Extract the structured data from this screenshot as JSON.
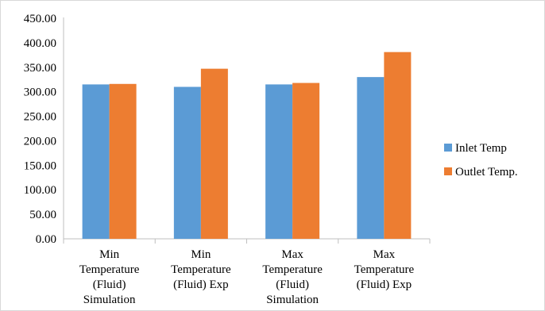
{
  "chart_data": {
    "type": "bar",
    "categories": [
      [
        "Min",
        "Temperature",
        "(Fluid)",
        "Simulation"
      ],
      [
        "Min",
        "Temperature",
        "(Fluid) Exp"
      ],
      [
        "Max",
        "Temperature",
        "(Fluid)",
        "Simulation"
      ],
      [
        "Max",
        "Temperature",
        "(Fluid) Exp"
      ]
    ],
    "series": [
      {
        "name": "Inlet Temp",
        "color": "#5b9bd5",
        "values": [
          315,
          310,
          315,
          330
        ]
      },
      {
        "name": "Outlet Temp.",
        "color": "#ed7d31",
        "values": [
          316,
          347,
          318,
          381
        ]
      }
    ],
    "ylim": [
      0,
      450
    ],
    "yticks": [
      "0.00",
      "50.00",
      "100.00",
      "150.00",
      "200.00",
      "250.00",
      "300.00",
      "350.00",
      "400.00",
      "450.00"
    ],
    "grid": false,
    "legend_position": "right",
    "title": "",
    "xlabel": "",
    "ylabel": ""
  }
}
